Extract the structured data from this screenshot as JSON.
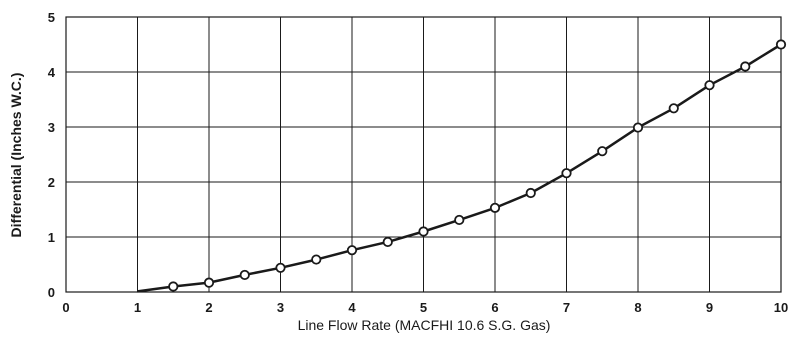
{
  "chart_data": {
    "type": "line",
    "title": "",
    "xlabel": "Line Flow Rate (MACFHI 10.6 S.G. Gas)",
    "ylabel": "Differential (Inches W.C.)",
    "xlim": [
      0,
      10
    ],
    "ylim": [
      0,
      5
    ],
    "x_ticks": [
      "0",
      "1",
      "2",
      "3",
      "4",
      "5",
      "6",
      "7",
      "8",
      "9",
      "10"
    ],
    "y_ticks": [
      "0",
      "1",
      "2",
      "3",
      "4",
      "5"
    ],
    "grid": true,
    "marker": "circle",
    "line_color": "#1a1a1a",
    "series": [
      {
        "points": [
          {
            "x": 1.0,
            "y": 0.01,
            "marker": false
          },
          {
            "x": 1.5,
            "y": 0.1,
            "marker": true
          },
          {
            "x": 2.0,
            "y": 0.17,
            "marker": true
          },
          {
            "x": 2.5,
            "y": 0.31,
            "marker": true
          },
          {
            "x": 3.0,
            "y": 0.44,
            "marker": true
          },
          {
            "x": 3.5,
            "y": 0.59,
            "marker": true
          },
          {
            "x": 4.0,
            "y": 0.76,
            "marker": true
          },
          {
            "x": 4.5,
            "y": 0.91,
            "marker": true
          },
          {
            "x": 5.0,
            "y": 1.1,
            "marker": true
          },
          {
            "x": 5.5,
            "y": 1.31,
            "marker": true
          },
          {
            "x": 6.0,
            "y": 1.53,
            "marker": true
          },
          {
            "x": 6.5,
            "y": 1.8,
            "marker": true
          },
          {
            "x": 7.0,
            "y": 2.16,
            "marker": true
          },
          {
            "x": 7.5,
            "y": 2.56,
            "marker": true
          },
          {
            "x": 8.0,
            "y": 2.99,
            "marker": true
          },
          {
            "x": 8.5,
            "y": 3.34,
            "marker": true
          },
          {
            "x": 9.0,
            "y": 3.76,
            "marker": true
          },
          {
            "x": 9.5,
            "y": 4.1,
            "marker": true
          },
          {
            "x": 10.0,
            "y": 4.5,
            "marker": true
          }
        ]
      }
    ]
  }
}
